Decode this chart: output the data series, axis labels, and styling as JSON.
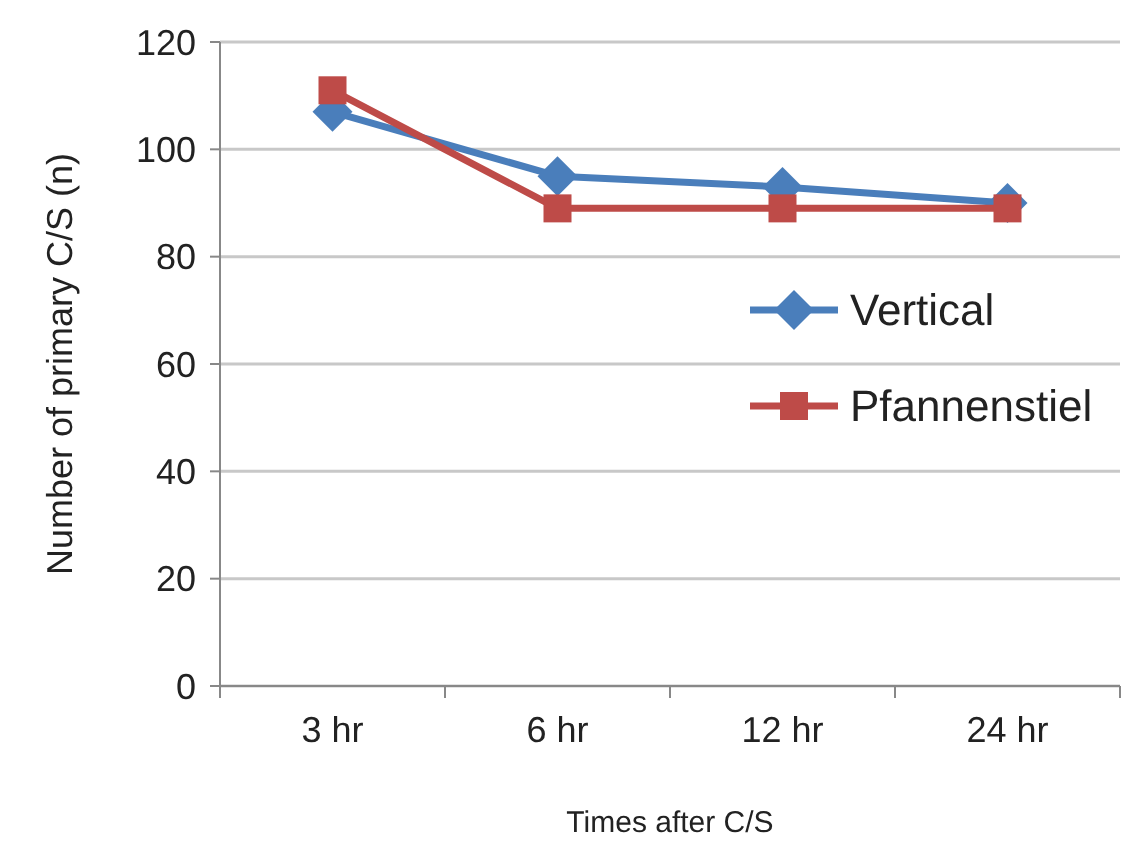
{
  "chart_data": {
    "type": "line",
    "xlabel": "Times after C/S",
    "ylabel": "Number of primary C/S (n)",
    "categories": [
      "3 hr",
      "6 hr",
      "12 hr",
      "24 hr"
    ],
    "series": [
      {
        "name": "Vertical",
        "color": "#4a7ebb",
        "values": [
          107,
          95,
          93,
          90
        ],
        "marker": "diamond"
      },
      {
        "name": "Pfannenstiel",
        "color": "#be4b48",
        "values": [
          111,
          89,
          89,
          89
        ],
        "marker": "square"
      }
    ],
    "ylim": [
      0,
      120
    ],
    "yticks": [
      0,
      20,
      40,
      60,
      80,
      100,
      120
    ],
    "grid": "y",
    "legend": "right",
    "line_style": "solid"
  }
}
